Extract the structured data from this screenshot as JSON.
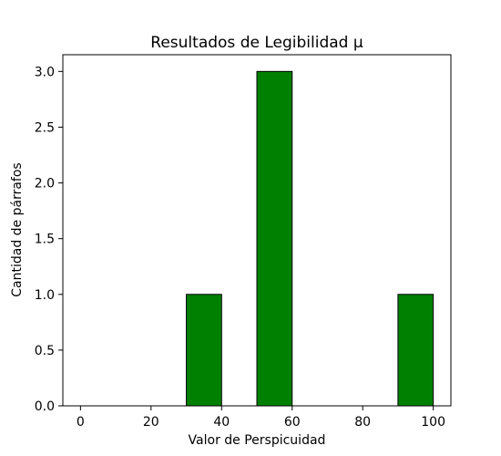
{
  "chart_data": {
    "type": "bar",
    "title": "Resultados de Legibilidad µ",
    "xlabel": "Valor de Perspicuidad",
    "ylabel": "Cantidad de párrafos",
    "xlim": [
      -5,
      105
    ],
    "ylim": [
      0,
      3.15
    ],
    "x_ticks": [
      0,
      20,
      40,
      60,
      80,
      100
    ],
    "y_ticks": [
      0.0,
      0.5,
      1.0,
      1.5,
      2.0,
      2.5,
      3.0
    ],
    "x_tick_labels": [
      "0",
      "20",
      "40",
      "60",
      "80",
      "100"
    ],
    "y_tick_labels": [
      "0.0",
      "0.5",
      "1.0",
      "1.5",
      "2.0",
      "2.5",
      "3.0"
    ],
    "bins": [
      {
        "start": 0,
        "end": 10,
        "count": 0
      },
      {
        "start": 10,
        "end": 20,
        "count": 0
      },
      {
        "start": 20,
        "end": 30,
        "count": 0
      },
      {
        "start": 30,
        "end": 40,
        "count": 1
      },
      {
        "start": 40,
        "end": 50,
        "count": 0
      },
      {
        "start": 50,
        "end": 60,
        "count": 3
      },
      {
        "start": 60,
        "end": 70,
        "count": 0
      },
      {
        "start": 70,
        "end": 80,
        "count": 0
      },
      {
        "start": 80,
        "end": 90,
        "count": 0
      },
      {
        "start": 90,
        "end": 100,
        "count": 1
      }
    ],
    "bar_color": "#008000",
    "edge_color": "#000000",
    "grid": false,
    "legend": "none"
  }
}
